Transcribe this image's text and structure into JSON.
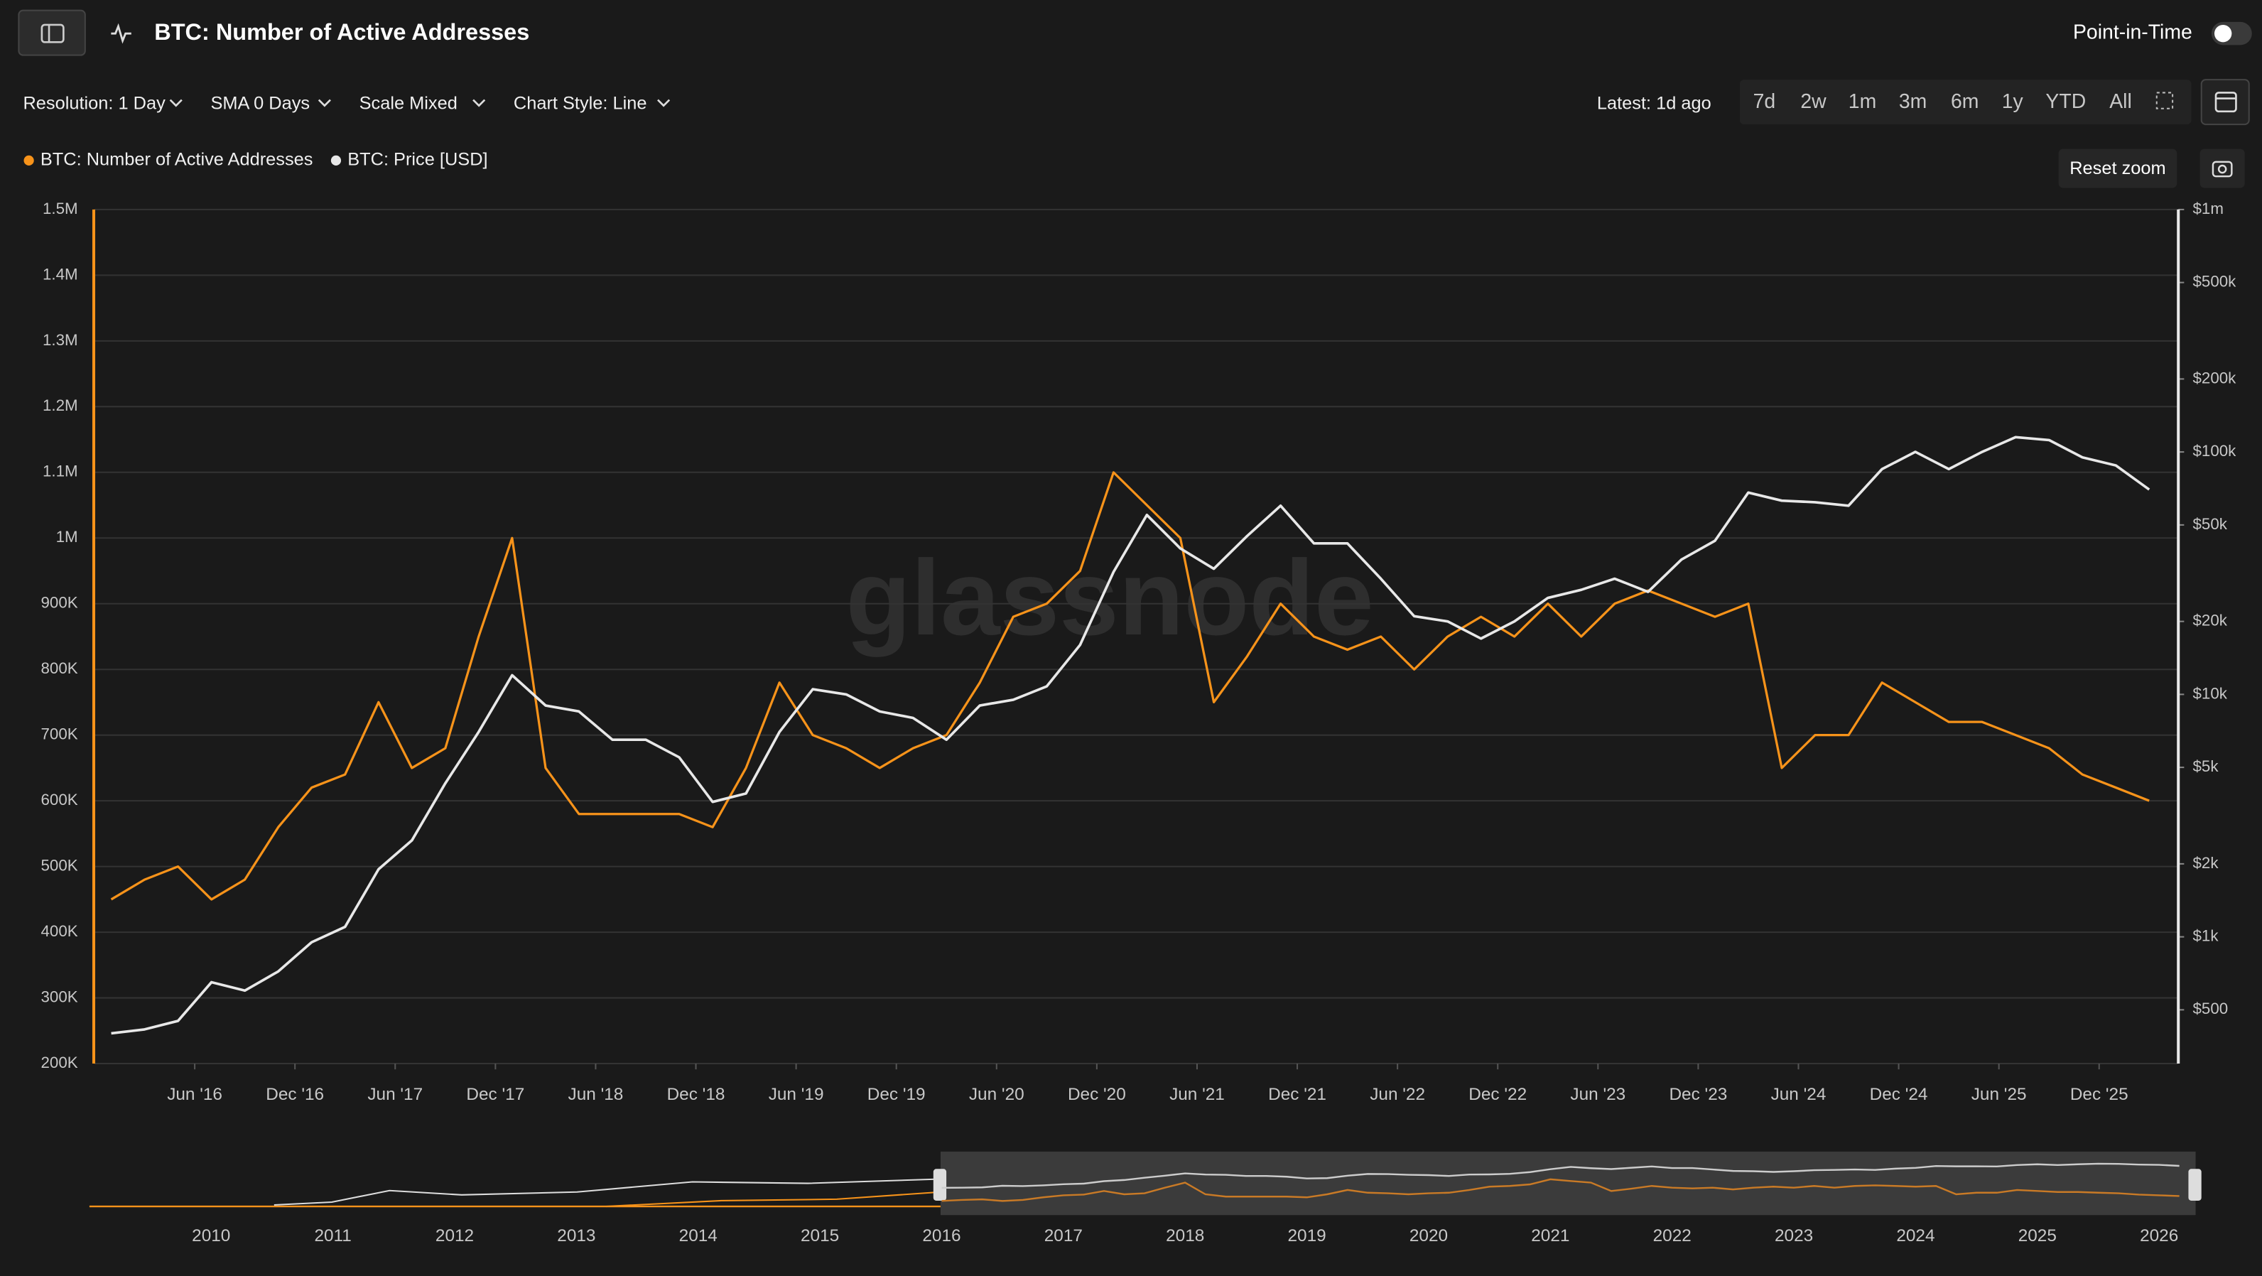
{
  "header": {
    "title": "BTC: Number of Active Addresses",
    "point_in_time": "Point-in-Time"
  },
  "toolbar": {
    "resolution": "Resolution: 1 Day",
    "sma": "SMA 0 Days",
    "scale": "Scale Mixed",
    "chart_style": "Chart Style: Line",
    "latest": "Latest: 1d ago",
    "ranges": [
      "7d",
      "2w",
      "1m",
      "3m",
      "6m",
      "1y",
      "YTD",
      "All"
    ],
    "reset_zoom": "Reset zoom"
  },
  "chart_data": {
    "type": "line",
    "watermark": "glassnode",
    "x": [
      "2016-01",
      "2016-03",
      "2016-05",
      "2016-07",
      "2016-09",
      "2016-11",
      "2017-01",
      "2017-03",
      "2017-05",
      "2017-07",
      "2017-09",
      "2017-11",
      "2018-01",
      "2018-03",
      "2018-05",
      "2018-07",
      "2018-09",
      "2018-11",
      "2019-01",
      "2019-03",
      "2019-05",
      "2019-07",
      "2019-09",
      "2019-11",
      "2020-01",
      "2020-03",
      "2020-05",
      "2020-07",
      "2020-09",
      "2020-11",
      "2021-01",
      "2021-03",
      "2021-05",
      "2021-07",
      "2021-09",
      "2021-11",
      "2022-01",
      "2022-03",
      "2022-05",
      "2022-07",
      "2022-09",
      "2022-11",
      "2023-01",
      "2023-03",
      "2023-05",
      "2023-07",
      "2023-09",
      "2023-11",
      "2024-01",
      "2024-03",
      "2024-05",
      "2024-07",
      "2024-09",
      "2024-11",
      "2025-01",
      "2025-03",
      "2025-05",
      "2025-07",
      "2025-09",
      "2025-11",
      "2026-01",
      "2026-03"
    ],
    "series": [
      {
        "name": "BTC: Number of Active Addresses",
        "color": "#f7931a",
        "values": [
          450000,
          480000,
          500000,
          450000,
          480000,
          560000,
          620000,
          640000,
          750000,
          650000,
          680000,
          850000,
          1000000,
          650000,
          580000,
          580000,
          580000,
          580000,
          560000,
          650000,
          780000,
          700000,
          680000,
          650000,
          680000,
          700000,
          780000,
          880000,
          900000,
          950000,
          1100000,
          1050000,
          1000000,
          750000,
          820000,
          900000,
          850000,
          830000,
          850000,
          800000,
          850000,
          880000,
          850000,
          900000,
          850000,
          900000,
          920000,
          900000,
          880000,
          900000,
          650000,
          700000,
          700000,
          780000,
          750000,
          720000,
          720000,
          700000,
          680000,
          640000,
          620000,
          600000
        ]
      },
      {
        "name": "BTC: Price [USD]",
        "color": "#e8e8e8",
        "axis": "y2",
        "values": [
          400,
          415,
          450,
          650,
          600,
          720,
          950,
          1100,
          1900,
          2500,
          4300,
          7000,
          12000,
          9000,
          8500,
          6500,
          6500,
          5500,
          3600,
          3900,
          7000,
          10500,
          10000,
          8500,
          8000,
          6500,
          9000,
          9500,
          10800,
          16000,
          32000,
          55000,
          40000,
          33000,
          45000,
          60000,
          42000,
          42000,
          30000,
          21000,
          20000,
          17000,
          20000,
          25000,
          27000,
          30000,
          26500,
          36000,
          43000,
          68000,
          63000,
          62000,
          60000,
          85000,
          100000,
          85000,
          100000,
          115000,
          112000,
          95000,
          88000,
          70000
        ]
      }
    ],
    "xlim": [
      "2015-12",
      "2026-05"
    ],
    "xticks": [
      {
        "value": "2016-06",
        "label": "Jun '16"
      },
      {
        "value": "2016-12",
        "label": "Dec '16"
      },
      {
        "value": "2017-06",
        "label": "Jun '17"
      },
      {
        "value": "2017-12",
        "label": "Dec '17"
      },
      {
        "value": "2018-06",
        "label": "Jun '18"
      },
      {
        "value": "2018-12",
        "label": "Dec '18"
      },
      {
        "value": "2019-06",
        "label": "Jun '19"
      },
      {
        "value": "2019-12",
        "label": "Dec '19"
      },
      {
        "value": "2020-06",
        "label": "Jun '20"
      },
      {
        "value": "2020-12",
        "label": "Dec '20"
      },
      {
        "value": "2021-06",
        "label": "Jun '21"
      },
      {
        "value": "2021-12",
        "label": "Dec '21"
      },
      {
        "value": "2022-06",
        "label": "Jun '22"
      },
      {
        "value": "2022-12",
        "label": "Dec '22"
      },
      {
        "value": "2023-06",
        "label": "Jun '23"
      },
      {
        "value": "2023-12",
        "label": "Dec '23"
      },
      {
        "value": "2024-06",
        "label": "Jun '24"
      },
      {
        "value": "2024-12",
        "label": "Dec '24"
      },
      {
        "value": "2025-06",
        "label": "Jun '25"
      },
      {
        "value": "2025-12",
        "label": "Dec '25"
      }
    ],
    "ylim": [
      200000,
      1500000
    ],
    "yticks": [
      {
        "value": 200000,
        "label": "200K"
      },
      {
        "value": 300000,
        "label": "300K"
      },
      {
        "value": 400000,
        "label": "400K"
      },
      {
        "value": 500000,
        "label": "500K"
      },
      {
        "value": 600000,
        "label": "600K"
      },
      {
        "value": 700000,
        "label": "700K"
      },
      {
        "value": 800000,
        "label": "800K"
      },
      {
        "value": 900000,
        "label": "900K"
      },
      {
        "value": 1000000,
        "label": "1M"
      },
      {
        "value": 1100000,
        "label": "1.1M"
      },
      {
        "value": 1200000,
        "label": "1.2M"
      },
      {
        "value": 1300000,
        "label": "1.3M"
      },
      {
        "value": 1400000,
        "label": "1.4M"
      },
      {
        "value": 1500000,
        "label": "1.5M"
      }
    ],
    "y2lim": [
      300,
      1000000
    ],
    "y2log": true,
    "y2ticks": [
      {
        "value": 500,
        "label": "$500"
      },
      {
        "value": 1000,
        "label": "$1k"
      },
      {
        "value": 2000,
        "label": "$2k"
      },
      {
        "value": 5000,
        "label": "$5k"
      },
      {
        "value": 10000,
        "label": "$10k"
      },
      {
        "value": 20000,
        "label": "$20k"
      },
      {
        "value": 50000,
        "label": "$50k"
      },
      {
        "value": 100000,
        "label": "$100k"
      },
      {
        "value": 200000,
        "label": "$200k"
      },
      {
        "value": 500000,
        "label": "$500k"
      },
      {
        "value": 1000000,
        "label": "$1m"
      }
    ],
    "grid": true,
    "navigator": {
      "xlim": [
        2009,
        2026.3
      ],
      "xticks": [
        2010,
        2011,
        2012,
        2013,
        2014,
        2015,
        2016,
        2017,
        2018,
        2019,
        2020,
        2021,
        2022,
        2023,
        2024,
        2025,
        2026
      ]
    }
  }
}
